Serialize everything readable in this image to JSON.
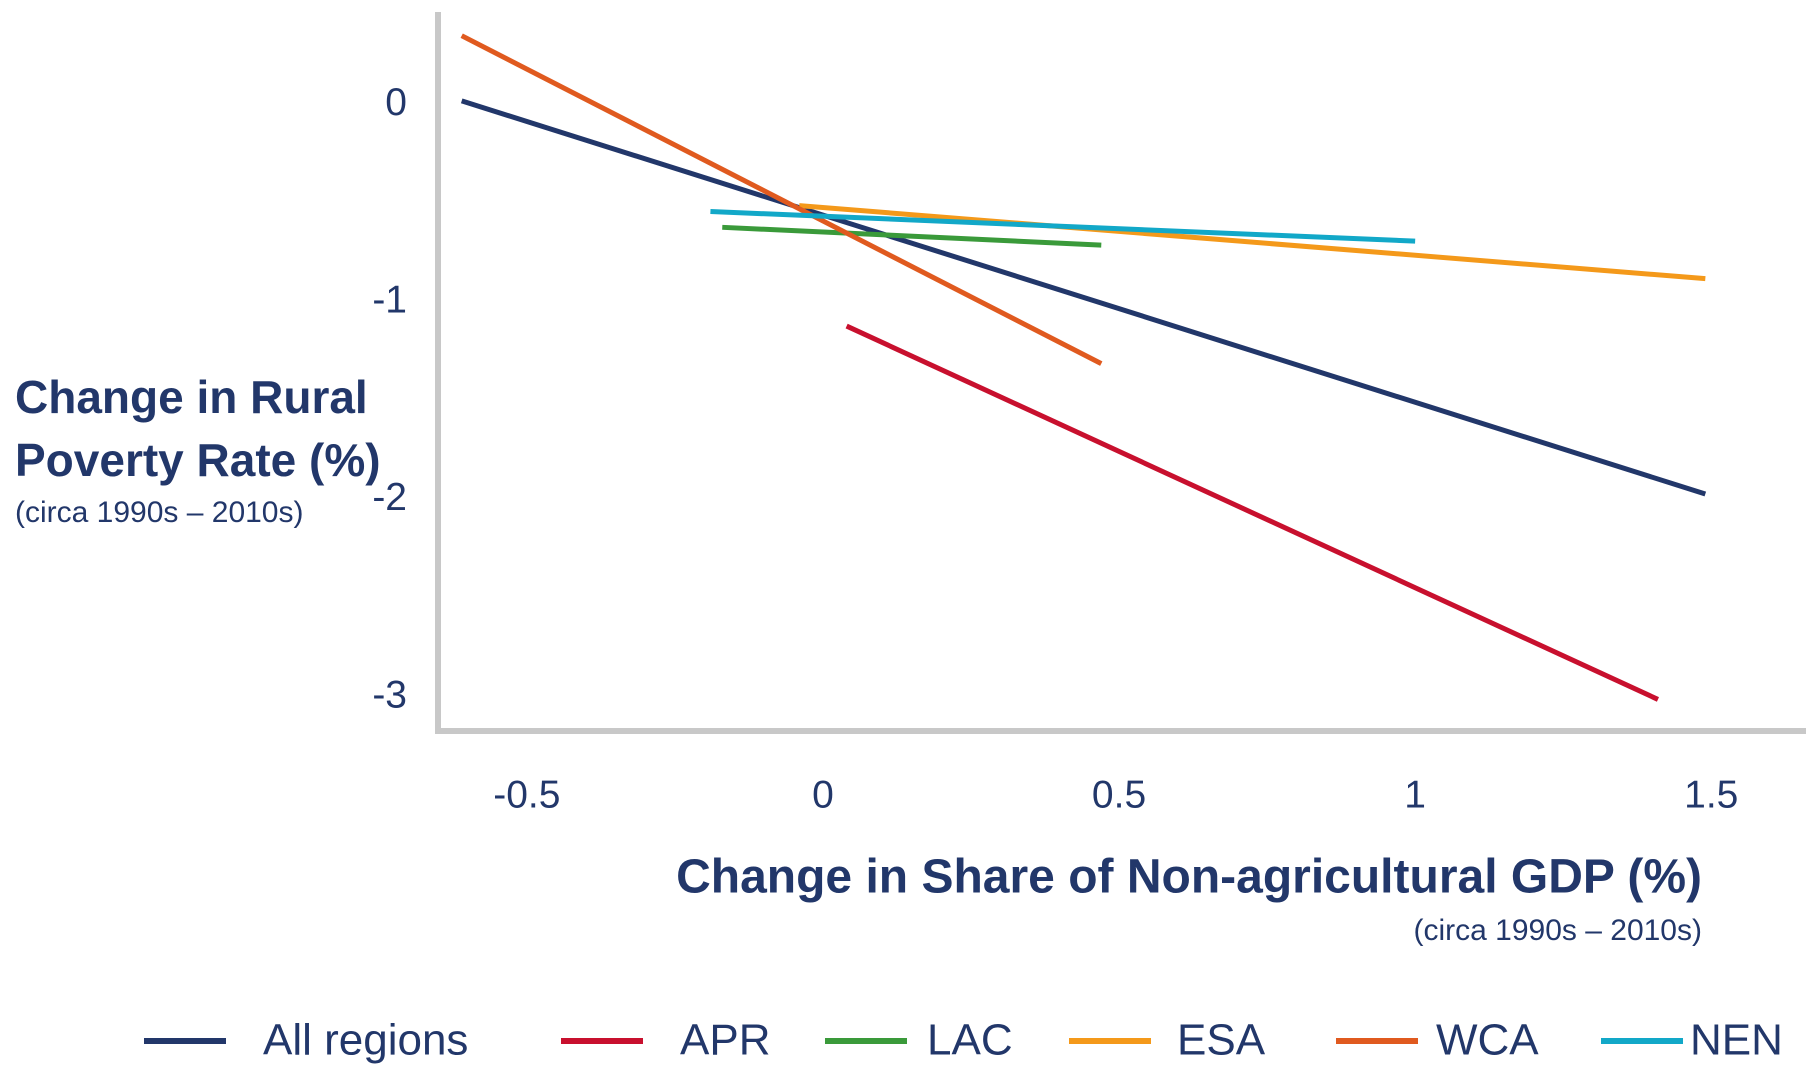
{
  "chart_data": {
    "type": "line",
    "y_label": "Change in Rural Poverty Rate (%)",
    "y_sublabel": "(circa 1990s – 2010s)",
    "x_label": "Change in Share of Non-agricultural GDP (%)",
    "x_sublabel": "(circa 1990s – 2010s)",
    "xlim": [
      -0.65,
      1.66
    ],
    "ylim": [
      -3.18,
      0.47
    ],
    "xticks": [
      -0.5,
      0,
      0.5,
      1,
      1.5
    ],
    "yticks": [
      0,
      -1,
      -2,
      -3
    ],
    "grid": false,
    "legend": "bottom",
    "series": [
      {
        "name": "All regions",
        "color": "#22376a",
        "x": [
          -0.61,
          1.49
        ],
        "values": [
          0.02,
          -1.97
        ]
      },
      {
        "name": "APR",
        "color": "#c8102e",
        "x": [
          0.04,
          1.41
        ],
        "values": [
          -1.12,
          -3.01
        ]
      },
      {
        "name": "LAC",
        "color": "#3a9a3a",
        "x": [
          -0.17,
          0.47
        ],
        "values": [
          -0.62,
          -0.71
        ]
      },
      {
        "name": "ESA",
        "color": "#f4991a",
        "x": [
          -0.04,
          1.49
        ],
        "values": [
          -0.51,
          -0.88
        ]
      },
      {
        "name": "WCA",
        "color": "#e05a1f",
        "x": [
          -0.61,
          0.47
        ],
        "values": [
          0.35,
          -1.31
        ]
      },
      {
        "name": "NEN",
        "color": "#12a8c8",
        "x": [
          -0.19,
          1.0
        ],
        "values": [
          -0.54,
          -0.69
        ]
      }
    ]
  }
}
